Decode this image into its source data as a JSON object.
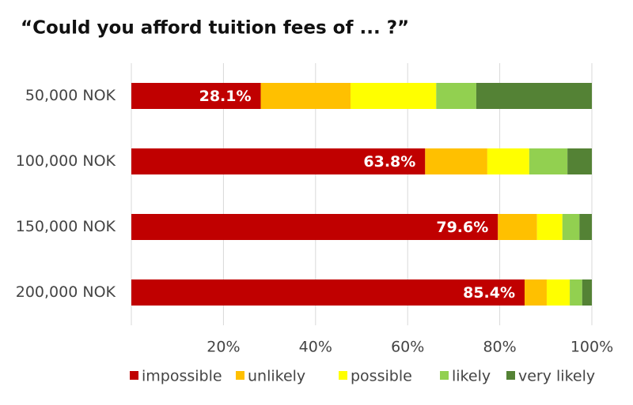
{
  "chart_data": {
    "type": "bar",
    "orientation": "horizontal",
    "stacked": true,
    "title": "“Could you afford tuition fees of ... ?”",
    "categories": [
      "50,000 NOK",
      "100,000 NOK",
      "150,000 NOK",
      "200,000 NOK"
    ],
    "series": [
      {
        "name": "impossible",
        "color": "#c00000",
        "values": [
          28.1,
          63.8,
          79.6,
          85.4
        ],
        "value_labels": [
          "28.1%",
          "63.8%",
          "79.6%",
          "85.4%"
        ]
      },
      {
        "name": "unlikely",
        "color": "#ffc000",
        "values": [
          19.5,
          13.5,
          8.5,
          4.8
        ]
      },
      {
        "name": "possible",
        "color": "#ffff00",
        "values": [
          18.6,
          9.1,
          5.5,
          5.0
        ]
      },
      {
        "name": "likely",
        "color": "#92d050",
        "values": [
          8.7,
          8.3,
          3.7,
          2.7
        ]
      },
      {
        "name": "very likely",
        "color": "#548235",
        "values": [
          25.1,
          5.3,
          2.7,
          2.1
        ]
      }
    ],
    "xlim": [
      0,
      100
    ],
    "xticks": [
      {
        "value": 20,
        "label": "20%"
      },
      {
        "value": 40,
        "label": "40%"
      },
      {
        "value": 60,
        "label": "60%"
      },
      {
        "value": 80,
        "label": "80%"
      },
      {
        "value": 100,
        "label": "100%"
      }
    ],
    "grid": true,
    "legend": "bottom"
  }
}
